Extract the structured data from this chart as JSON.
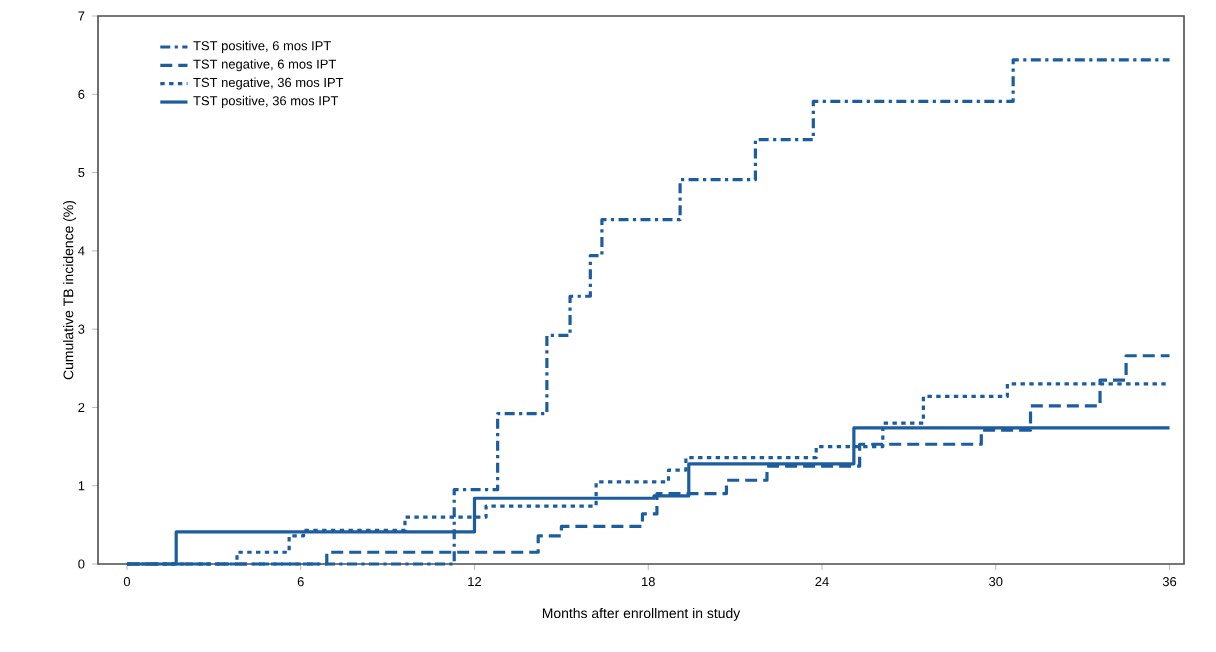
{
  "chart_data": {
    "type": "step",
    "xlabel": "Months after enrollment in study",
    "ylabel": "Cumulative TB incidence (%)",
    "xlim": [
      -1,
      36.5
    ],
    "ylim": [
      0,
      7
    ],
    "xticks": [
      0,
      6,
      12,
      18,
      24,
      30,
      36
    ],
    "yticks": [
      0,
      1,
      2,
      3,
      4,
      5,
      6,
      7
    ],
    "legend": "top left",
    "grid": false,
    "series": [
      {
        "name": "TST positive, 6 mos IPT",
        "color": "#1c5d9e",
        "line_style": "dashdot",
        "x": [
          0,
          11.3,
          12.8,
          14.5,
          15.3,
          16.0,
          16.4,
          19.1,
          21.7,
          23.7,
          30.6,
          36
        ],
        "values": [
          0,
          0.95,
          1.92,
          2.92,
          3.42,
          3.94,
          4.4,
          4.91,
          5.42,
          5.91,
          6.44,
          6.44
        ]
      },
      {
        "name": "TST negative, 6 mos IPT",
        "color": "#1c5d9e",
        "line_style": "dashed",
        "x": [
          0,
          6.9,
          14.2,
          15.0,
          17.8,
          18.3,
          20.7,
          22.1,
          25.3,
          29.5,
          31.2,
          33.6,
          34.5,
          36
        ],
        "values": [
          0,
          0.15,
          0.36,
          0.48,
          0.64,
          0.9,
          1.07,
          1.25,
          1.53,
          1.71,
          2.02,
          2.35,
          2.66,
          2.66
        ]
      },
      {
        "name": "TST negative, 36 mos IPT",
        "color": "#1c5d9e",
        "line_style": "dotted",
        "x": [
          0,
          3.8,
          5.6,
          6.1,
          9.6,
          12.4,
          16.2,
          18.7,
          19.3,
          23.8,
          26.1,
          27.5,
          30.4,
          36
        ],
        "values": [
          0,
          0.15,
          0.36,
          0.43,
          0.6,
          0.74,
          1.05,
          1.2,
          1.36,
          1.5,
          1.8,
          2.14,
          2.3,
          2.3
        ]
      },
      {
        "name": "TST positive, 36 mos IPT",
        "color": "#1c5d9e",
        "line_style": "solid",
        "x": [
          0,
          1.7,
          12.0,
          18.2,
          19.4,
          25.1,
          36
        ],
        "values": [
          0,
          0.41,
          0.84,
          0.87,
          1.28,
          1.74,
          1.74
        ]
      }
    ]
  }
}
